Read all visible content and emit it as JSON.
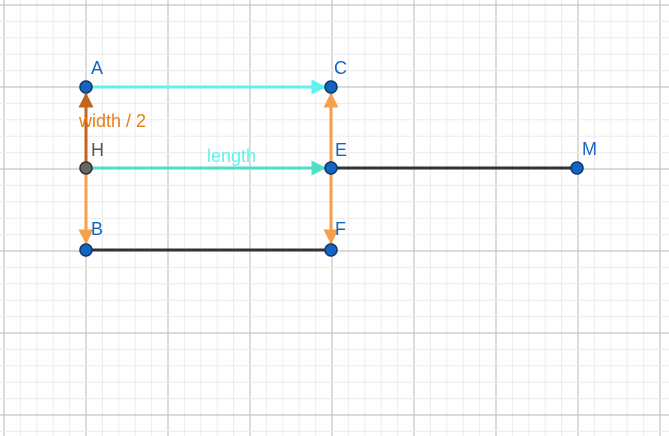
{
  "colors": {
    "point_fill": "#1565c0",
    "point_stroke": "#0b3a6e",
    "point_label": "#1565c0",
    "point_label_dark": "#555555",
    "point_dark_fill": "#666666",
    "vector_cyan": "#5ff2ee",
    "vector_orange": "#f5a04a",
    "vector_dark_orange": "#c0651f",
    "segment_dark": "#333333",
    "label_orange": "#e67e17",
    "label_cyan": "#5ff2ee",
    "grid_major": "#c4c4c4",
    "grid_minor": "#ececec"
  },
  "points": {
    "A": "A",
    "B": "B",
    "C": "C",
    "E": "E",
    "F": "F",
    "H": "H",
    "M": "M"
  },
  "labels": {
    "width_half": "width / 2",
    "length": "length"
  }
}
